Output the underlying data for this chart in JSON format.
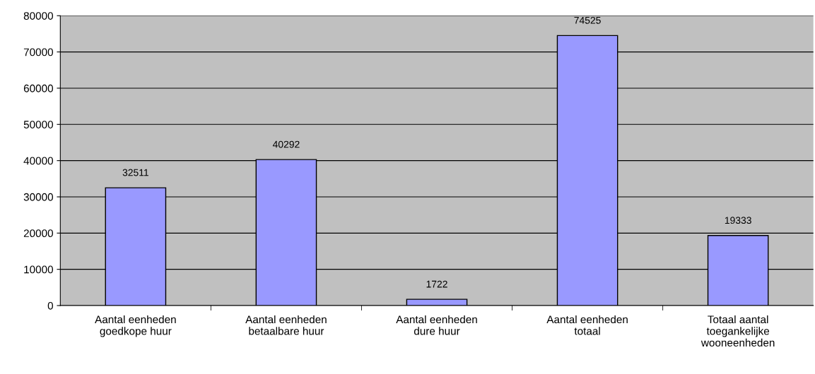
{
  "chart_data": {
    "type": "bar",
    "categories": [
      "Aantal eenheden\ngoedkope huur",
      "Aantal eenheden\nbetaalbare huur",
      "Aantal eenheden\ndure huur",
      "Aantal eenheden\ntotaal",
      "Totaal aantal\ntoegankelijke\nwooneenheden"
    ],
    "values": [
      32511,
      40292,
      1722,
      74525,
      19333
    ],
    "color": "#9999ff",
    "data_labels": true,
    "ylim": [
      0,
      80000
    ],
    "yticks": [
      0,
      10000,
      20000,
      30000,
      40000,
      50000,
      60000,
      70000,
      80000
    ],
    "grid": "y",
    "legend": false
  }
}
